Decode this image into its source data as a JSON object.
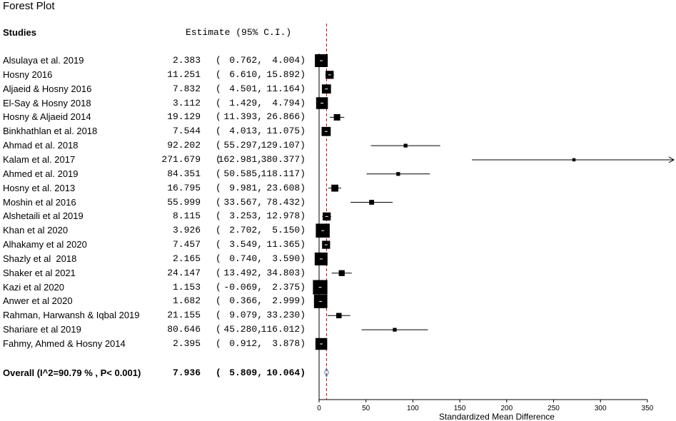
{
  "title": "Forest Plot",
  "header": {
    "studies": "Studies",
    "estimate": "Estimate (95% C.I.)"
  },
  "chart_data": {
    "type": "forest",
    "xlabel": "Standardized Mean Difference",
    "xlim": [
      0,
      350
    ],
    "xticks": [
      0,
      50,
      100,
      150,
      200,
      250,
      300,
      350
    ],
    "reference_line": 7.936,
    "studies": [
      {
        "name": "Alsulaya et al. 2019",
        "est": "2.383",
        "lo": "0.762",
        "hi": "4.004",
        "size": 1.0
      },
      {
        "name": "Hosny 2016",
        "est": "11.251",
        "lo": "6.610",
        "hi": "15.892",
        "size": 0.55
      },
      {
        "name": "Aljaeid & Hosny 2016",
        "est": "7.832",
        "lo": "4.501",
        "hi": "11.164",
        "size": 0.65
      },
      {
        "name": "El-Say & Hosny 2018",
        "est": "3.112",
        "lo": "1.429",
        "hi": "4.794",
        "size": 0.9
      },
      {
        "name": "Hosny & Aljaeid 2014",
        "est": "19.129",
        "lo": "11.393",
        "hi": "26.866",
        "size": 0.4
      },
      {
        "name": "Binkhathlan et al. 2018",
        "est": "7.544",
        "lo": "4.013",
        "hi": "11.075",
        "size": 0.65
      },
      {
        "name": "Ahmad et al. 2018",
        "est": "92.202",
        "lo": "55.297",
        "hi": "129.107",
        "size": 0.15
      },
      {
        "name": "Kalam et al. 2017",
        "est": "271.679",
        "lo": "162.981",
        "hi": "380.377",
        "size": 0.1
      },
      {
        "name": "Ahmed et al. 2019",
        "est": "84.351",
        "lo": "50.585",
        "hi": "118.117",
        "size": 0.15
      },
      {
        "name": "Hosny et al. 2013",
        "est": "16.795",
        "lo": "9.981",
        "hi": "23.608",
        "size": 0.45
      },
      {
        "name": "Moshin et al 2016",
        "est": "55.999",
        "lo": "33.567",
        "hi": "78.432",
        "size": 0.25
      },
      {
        "name": "Alshetaili et al 2019",
        "est": "8.115",
        "lo": "3.253",
        "hi": "12.978",
        "size": 0.55
      },
      {
        "name": "Khan et al 2020",
        "est": "3.926",
        "lo": "2.702",
        "hi": "5.150",
        "size": 1.1
      },
      {
        "name": "Alhakamy et al 2020",
        "est": "7.457",
        "lo": "3.549",
        "hi": "11.365",
        "size": 0.55
      },
      {
        "name": "Shazly et al  2018",
        "est": "2.165",
        "lo": "0.740",
        "hi": "3.590",
        "size": 1.0
      },
      {
        "name": "Shaker et al 2021",
        "est": "24.147",
        "lo": "13.492",
        "hi": "34.803",
        "size": 0.35
      },
      {
        "name": "Kazi et al 2020",
        "est": "1.153",
        "lo": "-0.069",
        "hi": "2.375",
        "size": 1.15
      },
      {
        "name": "Anwer et al 2020",
        "est": "1.682",
        "lo": "0.366",
        "hi": "2.999",
        "size": 1.05
      },
      {
        "name": "Rahman, Harwansh & Iqbal 2019",
        "est": "21.155",
        "lo": "9.079",
        "hi": "33.230",
        "size": 0.3
      },
      {
        "name": "Shariare et al 2019",
        "est": "80.646",
        "lo": "45.280",
        "hi": "116.012",
        "size": 0.15
      },
      {
        "name": "Fahmy, Ahmed & Hosny 2014",
        "est": "2.395",
        "lo": "0.912",
        "hi": "3.878",
        "size": 0.9
      }
    ],
    "overall": {
      "label": "Overall (I^2=90.79 % , P< 0.001)",
      "est": "7.936",
      "lo": "5.809",
      "hi": "10.064"
    }
  }
}
